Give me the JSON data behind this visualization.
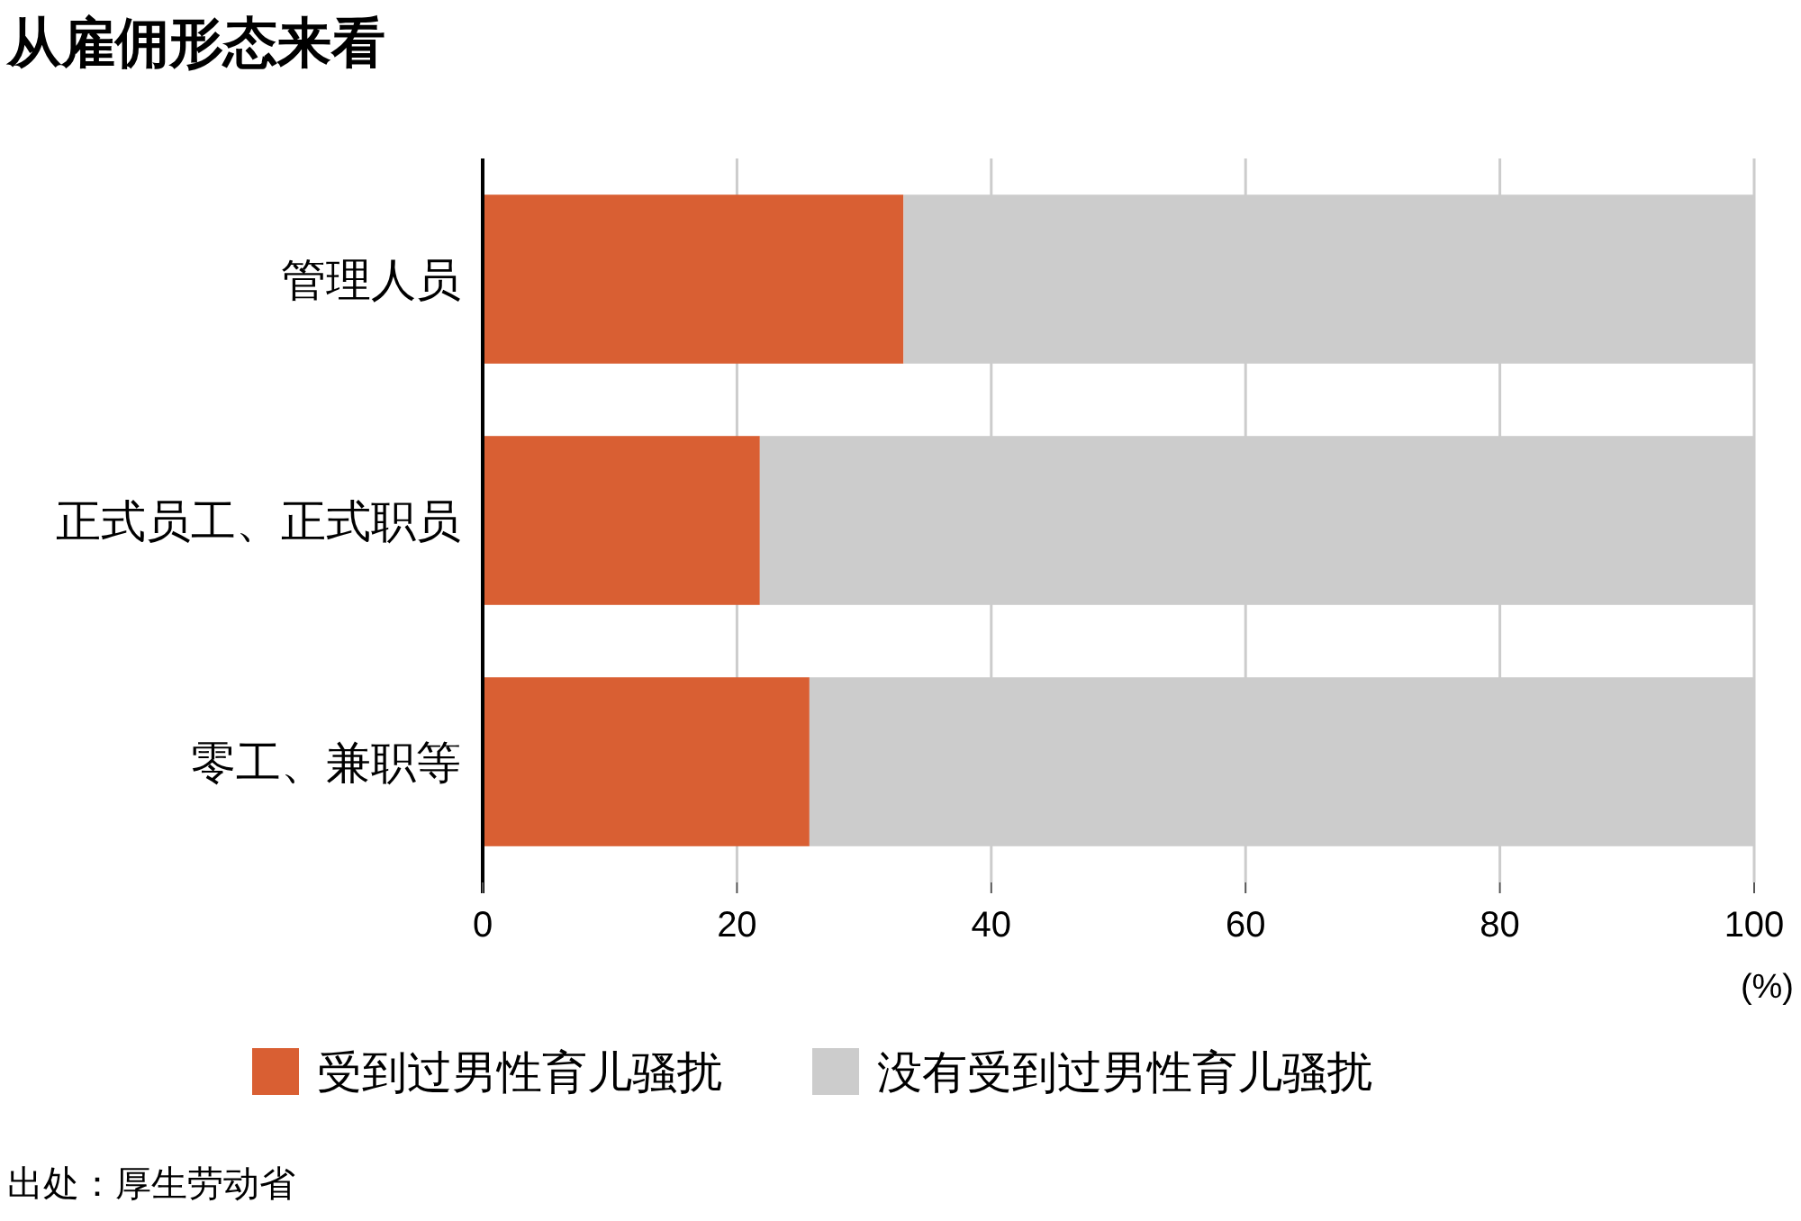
{
  "chart_data": {
    "type": "bar",
    "orientation": "horizontal",
    "stacked": true,
    "title": "从雇佣形态来看",
    "categories": [
      "管理人员",
      "正式员工、正式职员",
      "零工、兼职等"
    ],
    "series": [
      {
        "name": "受到过男性育儿骚扰",
        "color": "#d95f33",
        "values": [
          33.1,
          21.8,
          25.7
        ]
      },
      {
        "name": "没有受到过男性育儿骚扰",
        "color": "#cccccc",
        "values": [
          66.9,
          78.2,
          74.3
        ]
      }
    ],
    "xlim": [
      0,
      100
    ],
    "xticks": [
      0,
      20,
      40,
      60,
      80,
      100
    ],
    "xlabel": "(%)",
    "grid": "x",
    "legend": "bottom",
    "annotations": [
      "出处：厚生劳动省"
    ]
  }
}
